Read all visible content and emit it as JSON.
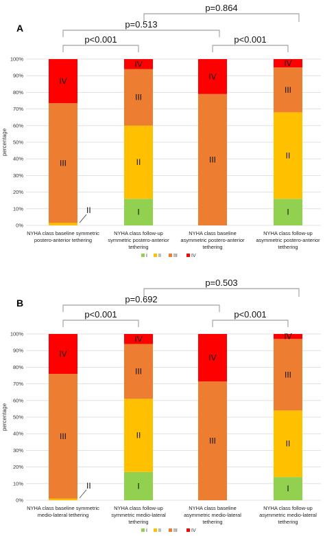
{
  "colors": {
    "I": "#92d050",
    "II": "#ffc000",
    "III": "#ed7d31",
    "IV": "#ff0000"
  },
  "chart_data": [
    {
      "type": "bar",
      "stacked": true,
      "panel": "A",
      "ylabel": "percentage",
      "ylim": [
        0,
        100
      ],
      "yticks": [
        "0%",
        "10%",
        "20%",
        "30%",
        "40%",
        "50%",
        "60%",
        "70%",
        "80%",
        "90%",
        "100%"
      ],
      "categories": [
        [
          "NYHA class baseline symmetric",
          "postero-anterior tethering"
        ],
        [
          "NYHA class follow-up",
          "symmetric postero-anterior",
          "tethering"
        ],
        [
          "NYHA class baseline",
          "asymmetric postero-anterior",
          "tethering"
        ],
        [
          "NYHA class follow-up",
          "asymmetric postero-anterior",
          "tethering"
        ]
      ],
      "series": [
        {
          "name": "I",
          "values": [
            0,
            16,
            0,
            16
          ]
        },
        {
          "name": "II",
          "values": [
            1.5,
            44,
            0,
            52
          ]
        },
        {
          "name": "III",
          "values": [
            72,
            34,
            79,
            27
          ]
        },
        {
          "name": "IV",
          "values": [
            26.5,
            6,
            21,
            5
          ]
        }
      ],
      "legend": [
        "I",
        "II",
        "III",
        "IV"
      ],
      "legend_position": "bottom",
      "grid": true,
      "annotations": [
        {
          "text": "p<0.001",
          "from": 0,
          "to": 1
        },
        {
          "text": "p=0.513",
          "from": 0,
          "to": 2
        },
        {
          "text": "p<0.001",
          "from": 2,
          "to": 3
        },
        {
          "text": "p=0.864",
          "from": 1,
          "to": 3
        }
      ]
    },
    {
      "type": "bar",
      "stacked": true,
      "panel": "B",
      "ylabel": "percentage",
      "ylim": [
        0,
        100
      ],
      "yticks": [
        "0%",
        "10%",
        "20%",
        "30%",
        "40%",
        "50%",
        "60%",
        "70%",
        "80%",
        "90%",
        "100%"
      ],
      "categories": [
        [
          "NYHA class baseline symmetric",
          "medio-lateral tethering"
        ],
        [
          "NYHA class follow-up",
          "symmetric medio-lateral",
          "tethering"
        ],
        [
          "NYHA class baseline",
          "asymmetric medio-lateral",
          "tethering"
        ],
        [
          "NYHA class follow-up",
          "asymmetric medio-lateral",
          "tethering"
        ]
      ],
      "series": [
        {
          "name": "I",
          "values": [
            0,
            17,
            0,
            14
          ]
        },
        {
          "name": "II",
          "values": [
            1,
            44,
            0,
            40
          ]
        },
        {
          "name": "III",
          "values": [
            75,
            33,
            71.5,
            43
          ]
        },
        {
          "name": "IV",
          "values": [
            24,
            6,
            28.5,
            3
          ]
        }
      ],
      "legend": [
        "I",
        "II",
        "III",
        "IV"
      ],
      "legend_position": "bottom",
      "grid": true,
      "annotations": [
        {
          "text": "p<0.001",
          "from": 0,
          "to": 1
        },
        {
          "text": "p=0.692",
          "from": 0,
          "to": 2
        },
        {
          "text": "p<0.001",
          "from": 2,
          "to": 3
        },
        {
          "text": "p=0.503",
          "from": 1,
          "to": 3
        }
      ]
    }
  ]
}
